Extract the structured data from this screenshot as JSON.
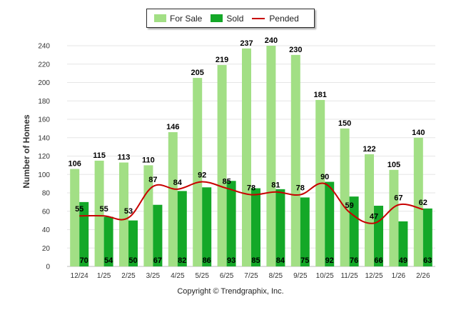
{
  "legend": {
    "for_sale": "For Sale",
    "sold": "Sold",
    "pended": "Pended"
  },
  "copyright": "Copyright © Trendgraphix, Inc.",
  "colors": {
    "for_sale": "#a2df85",
    "sold": "#14a828",
    "pended": "#c80000"
  },
  "chart_data": {
    "type": "bar",
    "title": "",
    "ylabel": "Number of Homes",
    "xlabel": "",
    "ylim": [
      0,
      240
    ],
    "yticks": [
      0,
      20,
      40,
      60,
      80,
      100,
      120,
      140,
      160,
      180,
      200,
      220,
      240
    ],
    "grid": true,
    "legend_position": "top",
    "categories": [
      "12/24",
      "1/25",
      "2/25",
      "3/25",
      "4/25",
      "5/25",
      "6/25",
      "7/25",
      "8/25",
      "9/25",
      "10/25",
      "11/25",
      "12/25",
      "1/26",
      "2/26"
    ],
    "series": [
      {
        "name": "For Sale",
        "type": "bar",
        "values": [
          106,
          115,
          113,
          110,
          146,
          205,
          219,
          237,
          240,
          230,
          181,
          150,
          122,
          105,
          140
        ]
      },
      {
        "name": "Sold",
        "type": "bar",
        "values": [
          70,
          54,
          50,
          67,
          82,
          86,
          93,
          85,
          84,
          75,
          92,
          76,
          66,
          49,
          63
        ]
      },
      {
        "name": "Pended",
        "type": "line",
        "values": [
          55,
          55,
          53,
          87,
          84,
          92,
          85,
          78,
          81,
          78,
          90,
          59,
          47,
          67,
          62
        ]
      }
    ]
  }
}
